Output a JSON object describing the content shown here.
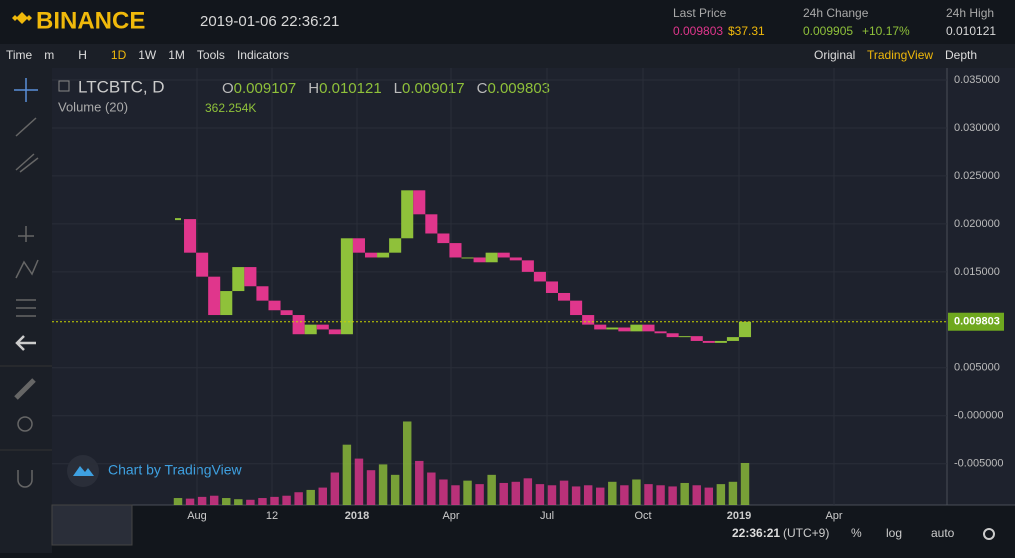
{
  "header": {
    "brand": "BINANCE",
    "datetime": "2019-01-06 22:36:21",
    "last_price_label": "Last Price",
    "last_price": "0.009803",
    "last_price_usd": "$37.31",
    "change_label": "24h Change",
    "change": "0.009905",
    "change_pct": "+10.17%",
    "high_label": "24h High",
    "high": "0.010121"
  },
  "toolbar": {
    "left": [
      "Time",
      "m",
      "H",
      "1D",
      "1W",
      "1M",
      "Tools",
      "Indicators"
    ],
    "right": [
      "Original",
      "TradingView",
      "Depth"
    ]
  },
  "legend": {
    "symbol": "LTCBTC, D",
    "ohlc": [
      {
        "key": "O",
        "value": "0.009107"
      },
      {
        "key": "H",
        "value": "0.010121"
      },
      {
        "key": "L",
        "value": "0.009017"
      },
      {
        "key": "C",
        "value": "0.009803"
      }
    ],
    "volume_label": "Volume (20)",
    "volume_value": "362.254K"
  },
  "watermark": "Chart by TradingView",
  "chart": {
    "type": "candlestick",
    "up_color": "#8fc13a",
    "down_color": "#e0368c",
    "ylim": [
      -0.0093,
      0.03625
    ],
    "yticks": [
      {
        "value": 0.035,
        "label": "0.035000"
      },
      {
        "value": 0.03,
        "label": "0.030000"
      },
      {
        "value": 0.025,
        "label": "0.025000"
      },
      {
        "value": 0.02,
        "label": "0.020000"
      },
      {
        "value": 0.015,
        "label": "0.015000"
      },
      {
        "value": 0.01,
        "label": "0.010000"
      },
      {
        "value": 0.005,
        "label": "0.005000"
      },
      {
        "value": 0,
        "label": "-0.000000"
      },
      {
        "value": -0.005,
        "label": "-0.005000"
      }
    ],
    "xticks": [
      "Aug",
      "12",
      "2018",
      "Apr",
      "Jul",
      "Oct",
      "2019",
      "Apr"
    ],
    "last_price": {
      "value": 0.009803,
      "label": "0.009803"
    },
    "price": [
      0.0205,
      0.017,
      0.0145,
      0.0105,
      0.013,
      0.0155,
      0.0135,
      0.012,
      0.011,
      0.0105,
      0.0085,
      0.0095,
      0.009,
      0.0085,
      0.0185,
      0.017,
      0.0165,
      0.017,
      0.0185,
      0.0235,
      0.021,
      0.019,
      0.018,
      0.0165,
      0.0165,
      0.016,
      0.017,
      0.0165,
      0.0162,
      0.015,
      0.014,
      0.0128,
      0.012,
      0.0105,
      0.0095,
      0.009,
      0.0092,
      0.0088,
      0.0095,
      0.0088,
      0.0086,
      0.0082,
      0.0083,
      0.0078,
      0.0076,
      0.0078,
      0.0082,
      0.0098
    ],
    "volume": [
      60,
      55,
      70,
      80,
      60,
      50,
      45,
      60,
      70,
      80,
      110,
      130,
      150,
      280,
      520,
      400,
      300,
      350,
      260,
      720,
      380,
      280,
      220,
      170,
      210,
      180,
      260,
      190,
      200,
      230,
      180,
      170,
      210,
      160,
      170,
      150,
      200,
      170,
      220,
      180,
      170,
      160,
      190,
      170,
      150,
      180,
      200,
      362.254
    ]
  },
  "status": {
    "time": "22:36:21",
    "tz": "(UTC+9)",
    "pct": "%",
    "log": "log",
    "auto": "auto"
  }
}
